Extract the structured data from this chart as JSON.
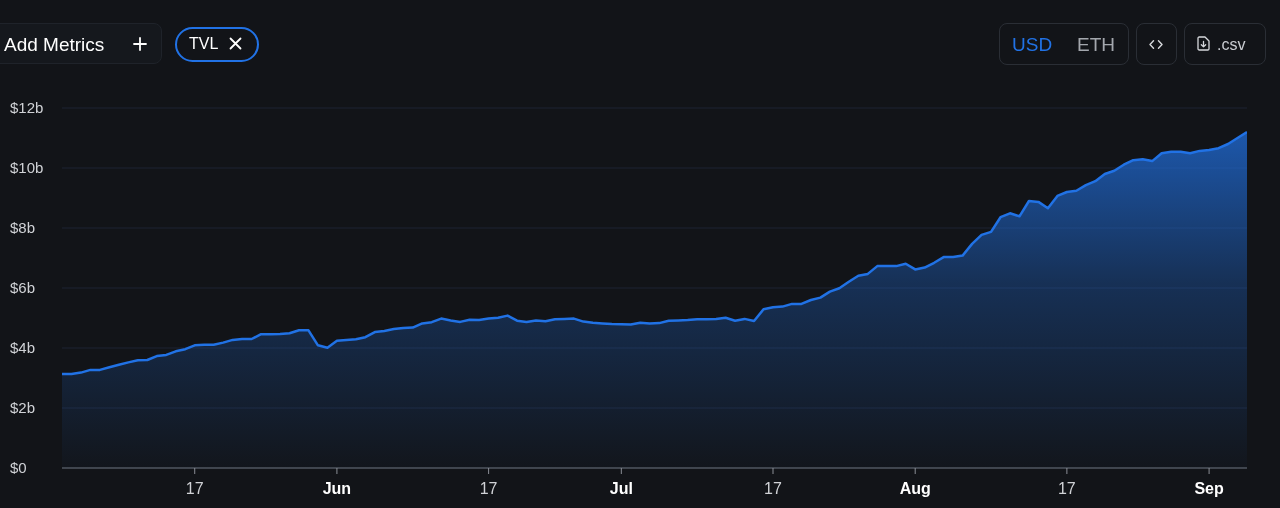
{
  "chart_data": {
    "type": "area",
    "annotations": [
      "Add Metrics",
      "TVL",
      "USD",
      "ETH",
      ".csv"
    ],
    "x": [
      "--05-03",
      "--05-04",
      "--05-05",
      "--05-06",
      "--05-07",
      "--05-08",
      "--05-09",
      "--05-10",
      "--05-11",
      "--05-12",
      "--05-13",
      "--05-14",
      "--05-15",
      "--05-16",
      "--05-17",
      "--05-18",
      "--05-19",
      "--05-20",
      "--05-21",
      "--05-22",
      "--05-23",
      "--05-24",
      "--05-25",
      "--05-26",
      "--05-27",
      "--05-28",
      "--05-29",
      "--05-30",
      "--05-31",
      "--06-01",
      "--06-02",
      "--06-03",
      "--06-04",
      "--06-05",
      "--06-06",
      "--06-07",
      "--06-08",
      "--06-09",
      "--06-10",
      "--06-11",
      "--06-12",
      "--06-13",
      "--06-14",
      "--06-15",
      "--06-16",
      "--06-17",
      "--06-18",
      "--06-19",
      "--06-20",
      "--06-21",
      "--06-22",
      "--06-23",
      "--06-24",
      "--06-25",
      "--06-26",
      "--06-27",
      "--06-28",
      "--06-29",
      "--06-30",
      "--07-01",
      "--07-02",
      "--07-03",
      "--07-04",
      "--07-05",
      "--07-06",
      "--07-07",
      "--07-08",
      "--07-09",
      "--07-10",
      "--07-11",
      "--07-12",
      "--07-13",
      "--07-14",
      "--07-15",
      "--07-16",
      "--07-17",
      "--07-18",
      "--07-19",
      "--07-20",
      "--07-21",
      "--07-22",
      "--07-23",
      "--07-24",
      "--07-25",
      "--07-26",
      "--07-27",
      "--07-28",
      "--07-29",
      "--07-30",
      "--07-31",
      "--08-01",
      "--08-02",
      "--08-03",
      "--08-04",
      "--08-05",
      "--08-06",
      "--08-07",
      "--08-08",
      "--08-09",
      "--08-10",
      "--08-11",
      "--08-12",
      "--08-13",
      "--08-14",
      "--08-15",
      "--08-16",
      "--08-17",
      "--08-18",
      "--08-19",
      "--08-20",
      "--08-21",
      "--08-22",
      "--08-23",
      "--08-24",
      "--08-25",
      "--08-26",
      "--08-27",
      "--08-28",
      "--08-29",
      "--08-30",
      "--08-31",
      "--09-01",
      "--09-02",
      "--09-03",
      "--09-04",
      "--09-05"
    ],
    "values": [
      3.13,
      3.13,
      3.18,
      3.27,
      3.27,
      3.36,
      3.44,
      3.52,
      3.59,
      3.6,
      3.73,
      3.77,
      3.89,
      3.96,
      4.09,
      4.11,
      4.11,
      4.18,
      4.27,
      4.3,
      4.3,
      4.46,
      4.46,
      4.47,
      4.49,
      4.59,
      4.59,
      4.09,
      4.01,
      4.24,
      4.27,
      4.29,
      4.36,
      4.53,
      4.57,
      4.63,
      4.67,
      4.68,
      4.82,
      4.86,
      4.98,
      4.92,
      4.87,
      4.94,
      4.93,
      4.98,
      5.01,
      5.08,
      4.91,
      4.87,
      4.92,
      4.89,
      4.96,
      4.97,
      4.98,
      4.88,
      4.84,
      4.82,
      4.8,
      4.79,
      4.78,
      4.84,
      4.82,
      4.83,
      4.91,
      4.92,
      4.93,
      4.96,
      4.96,
      4.97,
      5.01,
      4.91,
      4.97,
      4.9,
      5.29,
      5.36,
      5.38,
      5.47,
      5.47,
      5.6,
      5.68,
      5.88,
      5.99,
      6.21,
      6.41,
      6.47,
      6.73,
      6.73,
      6.73,
      6.81,
      6.62,
      6.68,
      6.84,
      7.03,
      7.03,
      7.08,
      7.47,
      7.77,
      7.87,
      8.36,
      8.49,
      8.39,
      8.9,
      8.87,
      8.66,
      9.07,
      9.2,
      9.24,
      9.43,
      9.56,
      9.8,
      9.91,
      10.11,
      10.26,
      10.29,
      10.23,
      10.49,
      10.54,
      10.54,
      10.49,
      10.57,
      10.6,
      10.66,
      10.8,
      11.0,
      11.2
    ],
    "color": "#2172e5",
    "xlim": [
      "--05-03",
      "--09-05"
    ],
    "xticks": [
      {
        "value": "--05-17",
        "label": "17"
      },
      {
        "value": "--06-01",
        "label": "Jun"
      },
      {
        "value": "--06-17",
        "label": "17"
      },
      {
        "value": "--07-01",
        "label": "Jul"
      },
      {
        "value": "--07-17",
        "label": "17"
      },
      {
        "value": "--08-01",
        "label": "Aug"
      },
      {
        "value": "--08-17",
        "label": "17"
      },
      {
        "value": "--09-01",
        "label": "Sep"
      }
    ],
    "ylim": [
      0,
      12
    ],
    "yticks": [
      {
        "value": 0,
        "label": "$0"
      },
      {
        "value": 2,
        "label": "$2b"
      },
      {
        "value": 4,
        "label": "$4b"
      },
      {
        "value": 6,
        "label": "$6b"
      },
      {
        "value": 8,
        "label": "$8b"
      },
      {
        "value": 10,
        "label": "$10b"
      },
      {
        "value": 12,
        "label": "$12b"
      }
    ],
    "grid": "y"
  }
}
